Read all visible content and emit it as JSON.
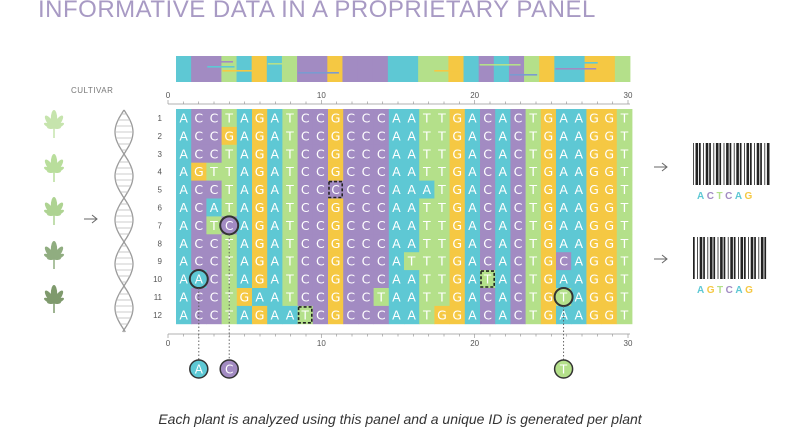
{
  "title": "INFORMATIVE DATA IN A PROPRIETARY PANEL",
  "cultivar_label": "CULTIVAR",
  "caption": "Each plant is analyzed using this panel and a unique ID is generated per plant",
  "axis_ticks": [
    "0",
    "10",
    "20",
    "30"
  ],
  "row_labels": [
    "1",
    "2",
    "3",
    "4",
    "5",
    "6",
    "7",
    "8",
    "9",
    "10",
    "11",
    "12"
  ],
  "colors": {
    "A": "#5ec8d4",
    "C": "#a28bc2",
    "G": "#f5c843",
    "T": "#b4e08a",
    "leaf": "#b5d89a",
    "leaf_dark": "#7d9a6c",
    "title": "#a89ac4"
  },
  "sequences": [
    "ACCTAGATCCGCCCAATTGACACTGAAGGT",
    "ACCGAGATCCGCCCAATTGACACTGAAGGT",
    "ACCTAGATCCGCCCAATTGACACTGAAGGT",
    "AGTTAGATCCGCCCAATTGACACTGAAGGT",
    "ACCTAGATCCCCCCAAATGACACTGAAGGT",
    "ACATAGATCCGCCCAATTGACACTGAAGGT",
    "ACTCAGATCCGCCCAATTGACACTGAAGGT",
    "ACCTAGATCCGCCCAATTGACACTGAAGGT",
    "ACCTAGATCCGCCCATTTGACACTGCAGGT",
    "AACTAGATCCGCCCAATTGATACTGAAGGT",
    "ACCTGAATCCGCCTAATTGACACTGTAGGT",
    "ACCTAGAATCGCCCAATGGACACTGAAGGT"
  ],
  "highlights": [
    {
      "row": 10,
      "col": 2,
      "base": "A",
      "style": "circle"
    },
    {
      "row": 7,
      "col": 4,
      "base": "C",
      "style": "circle"
    },
    {
      "row": 11,
      "col": 26,
      "base": "T",
      "style": "circle"
    },
    {
      "row": 5,
      "col": 11,
      "base": "C",
      "style": "dashed"
    },
    {
      "row": 10,
      "col": 21,
      "base": "T",
      "style": "dashed"
    },
    {
      "row": 12,
      "col": 9,
      "base": "T",
      "style": "dashed"
    }
  ],
  "selected_markers": [
    {
      "base": "A",
      "col": 2
    },
    {
      "base": "C",
      "col": 4
    },
    {
      "base": "T",
      "col": 26
    }
  ],
  "barcodes": [
    {
      "code": "ACTCAG"
    },
    {
      "code": "AGTCAG"
    }
  ]
}
